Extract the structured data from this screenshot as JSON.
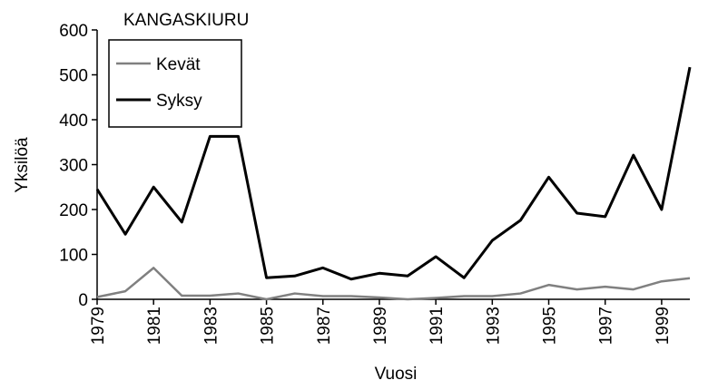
{
  "chart_data": {
    "type": "line",
    "title": "KANGASKIURU",
    "xlabel": "Vuosi",
    "ylabel": "Yksilöä",
    "x": [
      1979,
      1980,
      1981,
      1982,
      1983,
      1984,
      1985,
      1986,
      1987,
      1988,
      1989,
      1990,
      1991,
      1992,
      1993,
      1994,
      1995,
      1996,
      1997,
      1998,
      1999,
      2000
    ],
    "series": [
      {
        "name": "Kevät",
        "color": "#808080",
        "values": [
          5,
          18,
          70,
          8,
          8,
          13,
          0,
          13,
          7,
          7,
          4,
          0,
          3,
          7,
          7,
          13,
          32,
          22,
          28,
          22,
          40,
          47
        ]
      },
      {
        "name": "Syksy",
        "color": "#000000",
        "values": [
          245,
          145,
          250,
          172,
          363,
          363,
          48,
          52,
          70,
          45,
          58,
          52,
          95,
          48,
          131,
          176,
          272,
          192,
          184,
          321,
          200,
          517
        ]
      }
    ],
    "xlim": [
      1979,
      2000
    ],
    "xticks": [
      1979,
      1981,
      1983,
      1985,
      1987,
      1989,
      1991,
      1993,
      1995,
      1997,
      1999
    ],
    "ylim": [
      0,
      600
    ],
    "yticks": [
      0,
      100,
      200,
      300,
      400,
      500,
      600
    ],
    "legend": "upper left"
  }
}
